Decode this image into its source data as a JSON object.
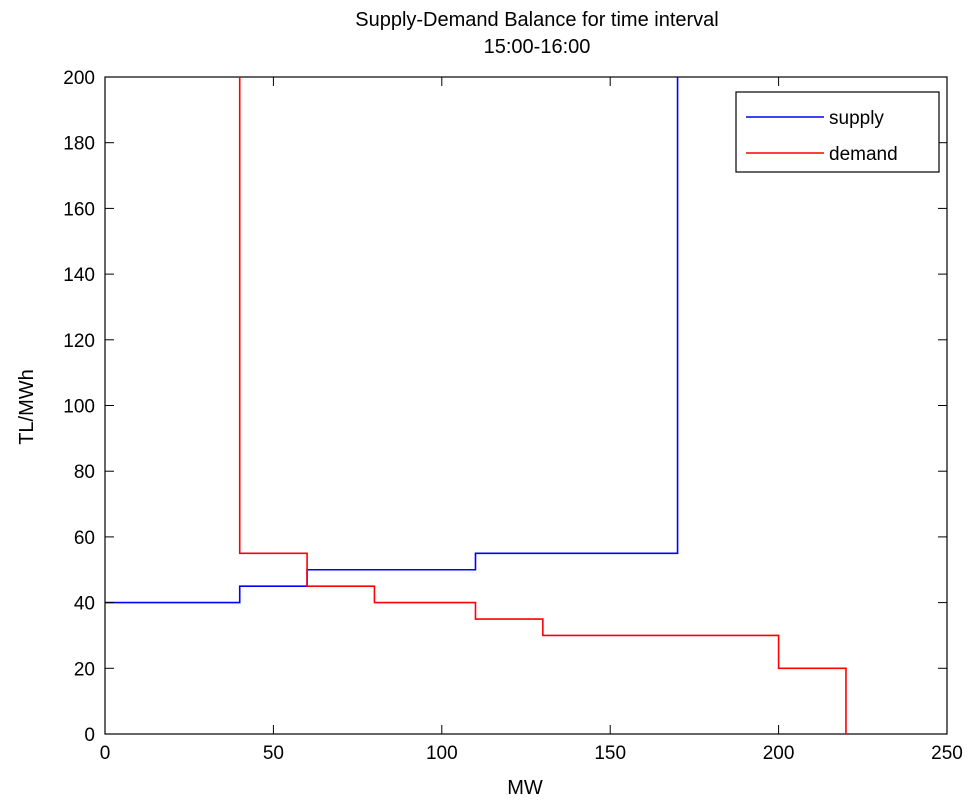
{
  "chart_data": {
    "type": "line",
    "step": true,
    "title": "Supply-Demand Balance for time interval",
    "subtitle": "15:00-16:00",
    "xlabel": "MW",
    "ylabel": "TL/MWh",
    "xlim": [
      0,
      250
    ],
    "ylim": [
      0,
      200
    ],
    "xticks": [
      0,
      50,
      100,
      150,
      200,
      250
    ],
    "yticks": [
      0,
      20,
      40,
      60,
      80,
      100,
      120,
      140,
      160,
      180,
      200
    ],
    "grid": false,
    "legend_position": "top-right",
    "series": [
      {
        "name": "supply",
        "color": "#0000ff",
        "points": [
          [
            0,
            40
          ],
          [
            40,
            40
          ],
          [
            40,
            45
          ],
          [
            60,
            45
          ],
          [
            60,
            50
          ],
          [
            110,
            50
          ],
          [
            110,
            55
          ],
          [
            170,
            55
          ],
          [
            170,
            200
          ]
        ]
      },
      {
        "name": "demand",
        "color": "#ff0000",
        "points": [
          [
            40,
            200
          ],
          [
            40,
            55
          ],
          [
            60,
            55
          ],
          [
            60,
            45
          ],
          [
            80,
            45
          ],
          [
            80,
            40
          ],
          [
            110,
            40
          ],
          [
            110,
            35
          ],
          [
            130,
            35
          ],
          [
            130,
            30
          ],
          [
            200,
            30
          ],
          [
            200,
            20
          ],
          [
            220,
            20
          ],
          [
            220,
            0
          ]
        ]
      }
    ]
  }
}
